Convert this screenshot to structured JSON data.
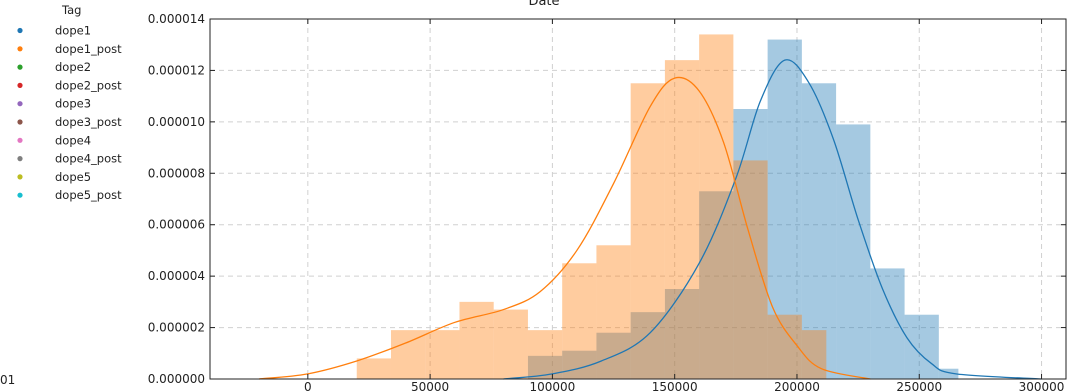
{
  "chart_data": {
    "type": "bar",
    "title": "Date",
    "xlabel": "",
    "ylabel": "",
    "xlim": [
      -40000,
      310000
    ],
    "ylim": [
      0,
      1.4e-05
    ],
    "grid": true,
    "x_ticks": [
      0,
      50000,
      100000,
      150000,
      200000,
      250000,
      300000
    ],
    "x_tick_labels": [
      "0",
      "50000",
      "100000",
      "150000",
      "200000",
      "250000",
      "300000"
    ],
    "y_ticks": [
      0,
      2e-06,
      4e-06,
      6e-06,
      8e-06,
      1e-05,
      1.2e-05,
      1.4e-05
    ],
    "y_tick_labels": [
      "0.000000",
      "0.000002",
      "0.000004",
      "0.000006",
      "0.000008",
      "0.000010",
      "0.000012",
      "0.000014"
    ],
    "left_edge_label": "01",
    "legend": {
      "title": "Tag",
      "placement": "left",
      "entries": [
        {
          "label": "dope1",
          "color": "#1f77b4"
        },
        {
          "label": "dope1_post",
          "color": "#ff7f0e"
        },
        {
          "label": "dope2",
          "color": "#2ca02c"
        },
        {
          "label": "dope2_post",
          "color": "#d62728"
        },
        {
          "label": "dope3",
          "color": "#9467bd"
        },
        {
          "label": "dope3_post",
          "color": "#8c564b"
        },
        {
          "label": "dope4",
          "color": "#e377c2"
        },
        {
          "label": "dope4_post",
          "color": "#7f7f7f"
        },
        {
          "label": "dope5",
          "color": "#bcbd22"
        },
        {
          "label": "dope5_post",
          "color": "#17becf"
        }
      ]
    },
    "series": [
      {
        "name": "dope1",
        "color": "#1f77b4",
        "bins": [
          {
            "x0": 90000,
            "x1": 104000,
            "y": 9e-07
          },
          {
            "x0": 104000,
            "x1": 118000,
            "y": 1.1e-06
          },
          {
            "x0": 118000,
            "x1": 132000,
            "y": 1.8e-06
          },
          {
            "x0": 132000,
            "x1": 146000,
            "y": 2.6e-06
          },
          {
            "x0": 146000,
            "x1": 160000,
            "y": 3.5e-06
          },
          {
            "x0": 160000,
            "x1": 174000,
            "y": 7.3e-06
          },
          {
            "x0": 174000,
            "x1": 188000,
            "y": 1.05e-05
          },
          {
            "x0": 188000,
            "x1": 202000,
            "y": 1.32e-05
          },
          {
            "x0": 202000,
            "x1": 216000,
            "y": 1.15e-05
          },
          {
            "x0": 216000,
            "x1": 230000,
            "y": 9.9e-06
          },
          {
            "x0": 230000,
            "x1": 244000,
            "y": 4.3e-06
          },
          {
            "x0": 244000,
            "x1": 258000,
            "y": 2.5e-06
          },
          {
            "x0": 258000,
            "x1": 266000,
            "y": 4e-07
          }
        ],
        "kde": [
          [
            80000,
            0.0
          ],
          [
            100000,
            2e-07
          ],
          [
            120000,
            7e-07
          ],
          [
            140000,
            1.8e-06
          ],
          [
            160000,
            4.5e-06
          ],
          [
            175000,
            7.8e-06
          ],
          [
            185000,
            1.08e-05
          ],
          [
            195000,
            1.24e-05
          ],
          [
            205000,
            1.15e-05
          ],
          [
            215000,
            9.3e-06
          ],
          [
            225000,
            6.2e-06
          ],
          [
            235000,
            3.5e-06
          ],
          [
            245000,
            1.6e-06
          ],
          [
            255000,
            6e-07
          ],
          [
            265000,
            2e-07
          ],
          [
            300000,
            0.0
          ]
        ]
      },
      {
        "name": "dope1_post",
        "color": "#ff7f0e",
        "bins": [
          {
            "x0": 20000,
            "x1": 34000,
            "y": 8e-07
          },
          {
            "x0": 34000,
            "x1": 48000,
            "y": 1.9e-06
          },
          {
            "x0": 48000,
            "x1": 62000,
            "y": 1.9e-06
          },
          {
            "x0": 62000,
            "x1": 76000,
            "y": 3e-06
          },
          {
            "x0": 76000,
            "x1": 90000,
            "y": 2.7e-06
          },
          {
            "x0": 90000,
            "x1": 104000,
            "y": 1.9e-06
          },
          {
            "x0": 104000,
            "x1": 118000,
            "y": 4.5e-06
          },
          {
            "x0": 118000,
            "x1": 132000,
            "y": 5.2e-06
          },
          {
            "x0": 132000,
            "x1": 146000,
            "y": 1.15e-05
          },
          {
            "x0": 146000,
            "x1": 160000,
            "y": 1.24e-05
          },
          {
            "x0": 160000,
            "x1": 174000,
            "y": 1.34e-05
          },
          {
            "x0": 174000,
            "x1": 188000,
            "y": 8.5e-06
          },
          {
            "x0": 188000,
            "x1": 202000,
            "y": 2.5e-06
          },
          {
            "x0": 202000,
            "x1": 212000,
            "y": 1.9e-06
          }
        ],
        "kde": [
          [
            -20000,
            0.0
          ],
          [
            0,
            2e-07
          ],
          [
            20000,
            7e-07
          ],
          [
            40000,
            1.4e-06
          ],
          [
            60000,
            2.2e-06
          ],
          [
            80000,
            2.7e-06
          ],
          [
            95000,
            3.4e-06
          ],
          [
            110000,
            5e-06
          ],
          [
            125000,
            7.6e-06
          ],
          [
            140000,
            1.06e-05
          ],
          [
            150000,
            1.17e-05
          ],
          [
            160000,
            1.12e-05
          ],
          [
            170000,
            9.2e-06
          ],
          [
            180000,
            5.8e-06
          ],
          [
            190000,
            2.8e-06
          ],
          [
            200000,
            1.3e-06
          ],
          [
            210000,
            4e-07
          ],
          [
            230000,
            0.0
          ]
        ]
      }
    ]
  }
}
